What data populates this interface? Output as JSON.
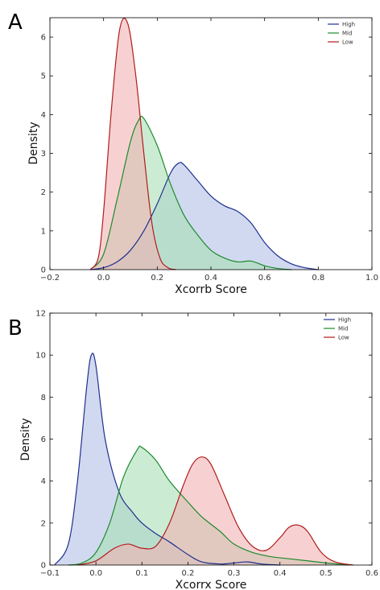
{
  "chart_data": [
    {
      "type": "area",
      "panel_label": "A",
      "xlabel": "Xcorrb Score",
      "ylabel": "Density",
      "xlim": [
        -0.2,
        1.0
      ],
      "ylim": [
        0,
        6.5
      ],
      "xticks": [
        -0.2,
        0.0,
        0.2,
        0.4,
        0.6,
        0.8,
        1.0
      ],
      "xtick_labels": [
        "−0.2",
        "0.0",
        "0.2",
        "0.4",
        "0.6",
        "0.8",
        "1.0"
      ],
      "yticks": [
        0,
        1,
        2,
        3,
        4,
        5,
        6
      ],
      "ytick_labels": [
        "0",
        "1",
        "2",
        "3",
        "4",
        "5",
        "6"
      ],
      "grid": false,
      "legend_position": "top-right",
      "series": [
        {
          "name": "High",
          "line_color": "#1f2f8f",
          "fill_color": "#b3bfe6",
          "x": [
            -0.05,
            0.0,
            0.05,
            0.1,
            0.15,
            0.2,
            0.25,
            0.28,
            0.3,
            0.35,
            0.4,
            0.45,
            0.5,
            0.55,
            0.6,
            0.65,
            0.7,
            0.75,
            0.8
          ],
          "y": [
            0,
            0.05,
            0.2,
            0.5,
            1.0,
            1.7,
            2.5,
            2.75,
            2.7,
            2.3,
            1.9,
            1.65,
            1.5,
            1.2,
            0.7,
            0.35,
            0.15,
            0.05,
            0
          ]
        },
        {
          "name": "Mid",
          "line_color": "#1c8a2e",
          "fill_color": "#a9dfb6",
          "x": [
            -0.05,
            0.0,
            0.05,
            0.1,
            0.13,
            0.15,
            0.2,
            0.25,
            0.3,
            0.35,
            0.4,
            0.45,
            0.5,
            0.55,
            0.6,
            0.65,
            0.7
          ],
          "y": [
            0,
            0.4,
            1.8,
            3.3,
            3.85,
            3.9,
            3.2,
            2.2,
            1.4,
            0.9,
            0.5,
            0.3,
            0.2,
            0.22,
            0.1,
            0.03,
            0
          ]
        },
        {
          "name": "Low",
          "line_color": "#b01c1c",
          "fill_color": "#f2b3b3",
          "x": [
            -0.05,
            -0.02,
            0.0,
            0.03,
            0.06,
            0.09,
            0.12,
            0.15,
            0.18,
            0.21,
            0.24,
            0.27
          ],
          "y": [
            0,
            0.3,
            1.5,
            4.2,
            6.2,
            6.35,
            5.0,
            3.0,
            1.2,
            0.3,
            0.05,
            0
          ]
        }
      ]
    },
    {
      "type": "area",
      "panel_label": "B",
      "xlabel": "Xcorrx Score",
      "ylabel": "Density",
      "xlim": [
        -0.1,
        0.6
      ],
      "ylim": [
        0,
        12
      ],
      "xticks": [
        -0.1,
        0.0,
        0.1,
        0.2,
        0.3,
        0.4,
        0.5,
        0.6
      ],
      "xtick_labels": [
        "−0.1",
        "0.0",
        "0.1",
        "0.2",
        "0.3",
        "0.4",
        "0.5",
        "0.6"
      ],
      "yticks": [
        0,
        2,
        4,
        6,
        8,
        10,
        12
      ],
      "ytick_labels": [
        "0",
        "2",
        "4",
        "6",
        "8",
        "10",
        "12"
      ],
      "grid": false,
      "legend_position": "top-right",
      "series": [
        {
          "name": "High",
          "line_color": "#1f2f8f",
          "fill_color": "#b3bfe6",
          "x": [
            -0.09,
            -0.06,
            -0.04,
            -0.02,
            -0.01,
            0.0,
            0.02,
            0.05,
            0.08,
            0.1,
            0.13,
            0.16,
            0.2,
            0.23,
            0.27,
            0.3,
            0.33,
            0.36,
            0.4
          ],
          "y": [
            0,
            1.0,
            4.0,
            8.5,
            10.0,
            9.5,
            6.0,
            3.5,
            2.5,
            2.0,
            1.5,
            1.1,
            0.5,
            0.15,
            0.05,
            0.1,
            0.15,
            0.05,
            0
          ]
        },
        {
          "name": "Mid",
          "line_color": "#1c8a2e",
          "fill_color": "#a9dfb6",
          "x": [
            -0.06,
            -0.03,
            0.0,
            0.03,
            0.06,
            0.09,
            0.1,
            0.13,
            0.16,
            0.2,
            0.23,
            0.27,
            0.3,
            0.34,
            0.38,
            0.42,
            0.46,
            0.5,
            0.55
          ],
          "y": [
            0,
            0.1,
            0.6,
            2.0,
            4.2,
            5.5,
            5.6,
            5.0,
            4.0,
            3.0,
            2.3,
            1.6,
            1.0,
            0.6,
            0.4,
            0.3,
            0.2,
            0.1,
            0
          ]
        },
        {
          "name": "Low",
          "line_color": "#b01c1c",
          "fill_color": "#f2b3b3",
          "x": [
            -0.04,
            0.0,
            0.04,
            0.07,
            0.1,
            0.13,
            0.16,
            0.19,
            0.21,
            0.23,
            0.25,
            0.28,
            0.31,
            0.34,
            0.37,
            0.4,
            0.42,
            0.44,
            0.46,
            0.49,
            0.52,
            0.56
          ],
          "y": [
            0,
            0.2,
            0.8,
            1.0,
            0.8,
            0.9,
            2.0,
            3.8,
            4.8,
            5.15,
            4.8,
            3.3,
            1.8,
            0.9,
            0.7,
            1.3,
            1.8,
            1.9,
            1.6,
            0.6,
            0.15,
            0
          ]
        }
      ]
    }
  ]
}
